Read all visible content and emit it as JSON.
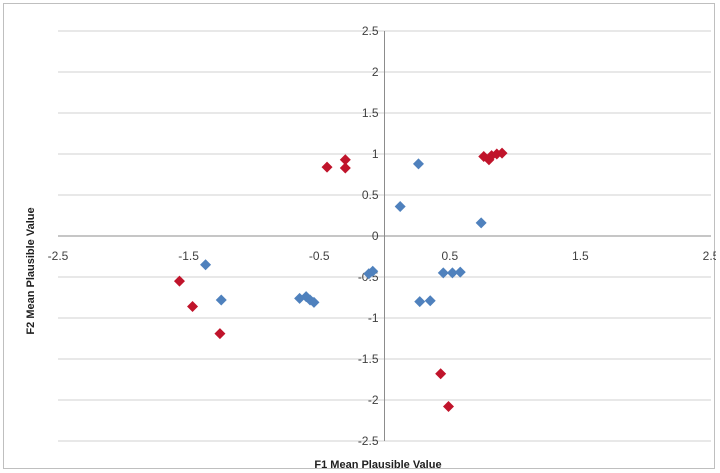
{
  "chart_data": {
    "type": "scatter",
    "xlabel": "F1 Mean Plausible Value",
    "ylabel": "F2 Mean Plausible Value",
    "xlim": [
      -2.5,
      2.5
    ],
    "ylim": [
      -2.5,
      2.5
    ],
    "x_ticks": [
      -2.5,
      -1.5,
      -0.5,
      0.5,
      1.5,
      2.5
    ],
    "y_ticks": [
      2.5,
      2,
      1.5,
      1,
      0.5,
      0,
      -0.5,
      -1,
      -1.5,
      -2,
      -2.5
    ],
    "x_tick_labels": [
      "-2.5",
      "-1.5",
      "-0.5",
      "0.5",
      "1.5",
      "2.5"
    ],
    "y_tick_labels": [
      "2.5",
      "2",
      "1.5",
      "1",
      "0.5",
      "0",
      "-0.5",
      "-1",
      "-1.5",
      "-2",
      "-2.5"
    ],
    "grid": "horizontal",
    "legend": "none",
    "marker": "diamond",
    "series": [
      {
        "color": "#4f81bd",
        "points": [
          [
            -1.37,
            -0.35
          ],
          [
            -1.25,
            -0.78
          ],
          [
            -0.65,
            -0.76
          ],
          [
            -0.6,
            -0.74
          ],
          [
            -0.57,
            -0.78
          ],
          [
            -0.54,
            -0.81
          ],
          [
            -0.12,
            -0.46
          ],
          [
            -0.09,
            -0.43
          ],
          [
            0.12,
            0.36
          ],
          [
            0.26,
            0.88
          ],
          [
            0.27,
            -0.8
          ],
          [
            0.35,
            -0.79
          ],
          [
            0.45,
            -0.45
          ],
          [
            0.52,
            -0.45
          ],
          [
            0.58,
            -0.44
          ],
          [
            0.74,
            0.16
          ]
        ]
      },
      {
        "color": "#c0142b",
        "points": [
          [
            -1.57,
            -0.55
          ],
          [
            -1.47,
            -0.86
          ],
          [
            -1.26,
            -1.19
          ],
          [
            -0.44,
            0.84
          ],
          [
            -0.3,
            0.93
          ],
          [
            -0.3,
            0.83
          ],
          [
            0.43,
            -1.68
          ],
          [
            0.49,
            -2.08
          ],
          [
            0.76,
            0.97
          ],
          [
            0.8,
            0.93
          ],
          [
            0.82,
            0.98
          ],
          [
            0.86,
            1.0
          ],
          [
            0.9,
            1.01
          ]
        ]
      }
    ]
  }
}
